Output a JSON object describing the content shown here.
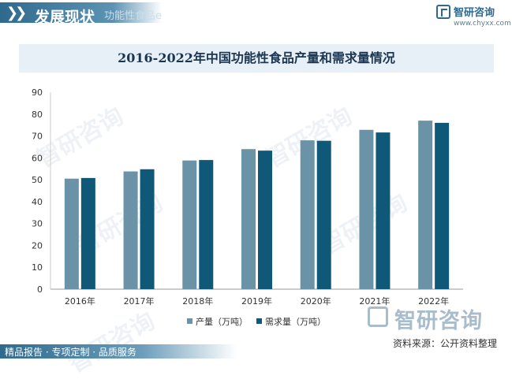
{
  "header": {
    "title": "发展现状",
    "ghost_text": "功能性食品e"
  },
  "logo": {
    "name": "智研咨询",
    "url": "www.chyxx.com",
    "icon": "zhiyan-logo-icon"
  },
  "watermark": {
    "brand": "智研咨询"
  },
  "chart_data": {
    "type": "bar",
    "title": "2016-2022年中国功能性食品产量和需求量情况",
    "categories": [
      "2016年",
      "2017年",
      "2018年",
      "2019年",
      "2020年",
      "2021年",
      "2022年"
    ],
    "series": [
      {
        "name": "产量（万吨）",
        "color": "#6b93a8",
        "values": [
          50.5,
          53.8,
          58.8,
          64.0,
          68.0,
          72.8,
          77.0
        ]
      },
      {
        "name": "需求量（万吨）",
        "color": "#0f5878",
        "values": [
          50.8,
          54.8,
          59.0,
          63.3,
          67.8,
          71.6,
          76.0
        ]
      }
    ],
    "yticks": [
      0,
      10,
      20,
      30,
      40,
      50,
      60,
      70,
      80,
      90
    ],
    "ylim": [
      0,
      90
    ],
    "grid": false,
    "legend_position": "bottom"
  },
  "source": "资料来源：公开资料整理",
  "footer": {
    "text": "精品报告 · 专项定制 · 品质服务"
  }
}
